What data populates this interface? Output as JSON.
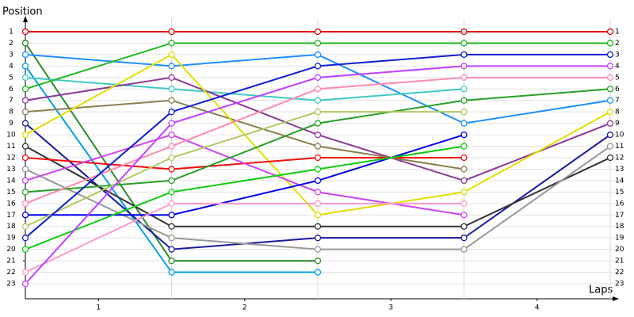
{
  "chart_data": {
    "type": "line",
    "y_axis_label": "Position",
    "x_axis_label": "Laps",
    "x": [
      0,
      1,
      2,
      3,
      4
    ],
    "xlim": [
      0,
      4
    ],
    "xticks": [
      {
        "value": 0.5,
        "label": "1"
      },
      {
        "value": 1.5,
        "label": "2"
      },
      {
        "value": 2.5,
        "label": "3"
      },
      {
        "value": 3.5,
        "label": "4"
      }
    ],
    "ylim": [
      1,
      23
    ],
    "y_inverted": true,
    "yticks": [
      1,
      2,
      3,
      4,
      5,
      6,
      7,
      8,
      9,
      10,
      11,
      12,
      13,
      14,
      15,
      16,
      17,
      18,
      19,
      20,
      21,
      22,
      23
    ],
    "grid": true,
    "series": [
      {
        "color": "#e00000",
        "values": [
          1,
          1,
          1,
          1,
          1
        ]
      },
      {
        "color": "#2e8b2e",
        "values": [
          2,
          21,
          21,
          null,
          null
        ]
      },
      {
        "color": "#1e90ff",
        "values": [
          3,
          4,
          3,
          9,
          7
        ]
      },
      {
        "color": "#00a0e8",
        "values": [
          4,
          22,
          22,
          null,
          null
        ]
      },
      {
        "color": "#40c8c8",
        "values": [
          5,
          6,
          7,
          6,
          null
        ]
      },
      {
        "color": "#22b822",
        "values": [
          6,
          2,
          2,
          2,
          2
        ]
      },
      {
        "color": "#8b3a96",
        "values": [
          7,
          5,
          10,
          14,
          9
        ]
      },
      {
        "color": "#8b8050",
        "values": [
          8,
          7,
          11,
          13,
          null
        ]
      },
      {
        "color": "#1a1aa0",
        "values": [
          9,
          20,
          19,
          19,
          10
        ]
      },
      {
        "color": "#e0e000",
        "values": [
          10,
          3,
          17,
          15,
          8
        ]
      },
      {
        "color": "#333333",
        "values": [
          11,
          18,
          18,
          18,
          12
        ]
      },
      {
        "color": "#ee1010",
        "values": [
          12,
          13,
          12,
          12,
          null
        ]
      },
      {
        "color": "#999999",
        "values": [
          13,
          19,
          20,
          20,
          11
        ]
      },
      {
        "color": "#cc44ee",
        "values": [
          14,
          10,
          15,
          17,
          null
        ]
      },
      {
        "color": "#28a028",
        "values": [
          15,
          14,
          9,
          7,
          6
        ]
      },
      {
        "color": "#ff8ab0",
        "values": [
          16,
          11,
          6,
          5,
          5
        ]
      },
      {
        "color": "#0000ee",
        "values": [
          17,
          17,
          14,
          10,
          null
        ]
      },
      {
        "color": "#b0c860",
        "values": [
          18,
          12,
          8,
          8,
          null
        ]
      },
      {
        "color": "#1020d0",
        "values": [
          19,
          8,
          4,
          3,
          3
        ]
      },
      {
        "color": "#10cc10",
        "values": [
          20,
          15,
          13,
          11,
          null
        ]
      },
      {
        "color": "#ff99cc",
        "values": [
          22,
          16,
          16,
          16,
          null
        ]
      },
      {
        "color": "#c040ff",
        "values": [
          23,
          9,
          5,
          4,
          4
        ]
      }
    ]
  }
}
